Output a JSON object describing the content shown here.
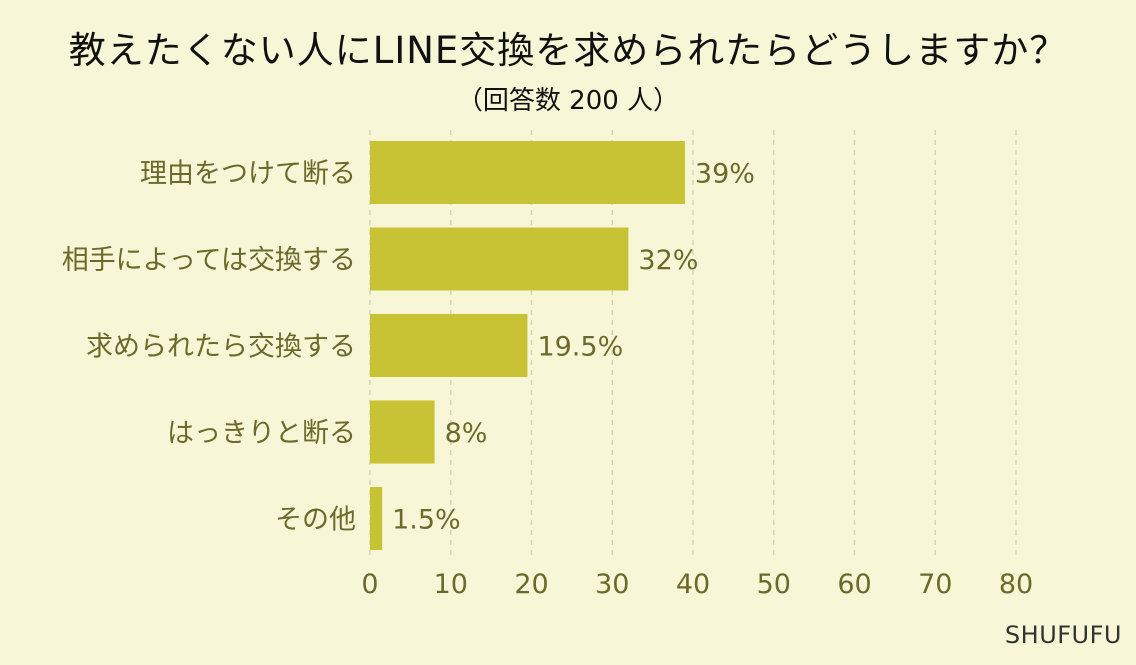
{
  "header": {
    "title": "教えたくない人にLINE交換を求められたらどうしますか？",
    "subtitle": "（回答数 200 人）"
  },
  "brand": "SHUFUFU",
  "colors": {
    "background": "#f7f7d8",
    "bar": "#c8c235",
    "text": "#6b6a2a",
    "grid": "#d6d5b4"
  },
  "chart_data": {
    "type": "bar",
    "orientation": "horizontal",
    "categories": [
      "理由をつけて断る",
      "相手によっては交換する",
      "求められたら交換する",
      "はっきりと断る",
      "その他"
    ],
    "values": [
      39,
      32,
      19.5,
      8,
      1.5
    ],
    "value_labels": [
      "39%",
      "32%",
      "19.5%",
      "8%",
      "1.5%"
    ],
    "xlim": [
      0,
      80
    ],
    "xticks": [
      0,
      10,
      20,
      30,
      40,
      50,
      60,
      70,
      80
    ],
    "grid": "vertical dashed"
  }
}
